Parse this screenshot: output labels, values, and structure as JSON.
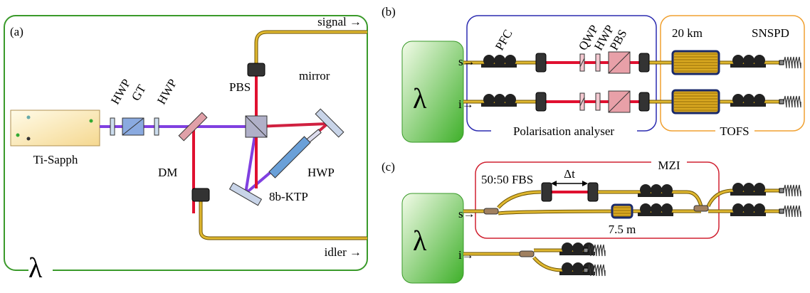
{
  "panel_a": {
    "label": "(a)",
    "source": "Ti-Sapph",
    "symbol": "λ",
    "components": {
      "hwp_in": "HWP",
      "gt": "GT",
      "hwp_out": "HWP",
      "pbs": "PBS",
      "mirror": "mirror",
      "dm": "DM",
      "hwp_loop": "HWP",
      "crystal": "8b-KTP"
    },
    "outputs": {
      "signal": "signal →",
      "idler": "idler →"
    }
  },
  "panel_b": {
    "label": "(b)",
    "symbol": "λ",
    "inputs": {
      "s": "s→",
      "i": "i→"
    },
    "components": {
      "pfc": "PFC",
      "qwp": "QWP",
      "hwp": "HWP",
      "pbs": "PBS",
      "spool": "20 km",
      "detector": "SNSPD"
    },
    "groups": {
      "analyser": "Polarisation analyser",
      "filter": "TOFS"
    }
  },
  "panel_c": {
    "label": "(c)",
    "symbol": "λ",
    "inputs": {
      "s": "s→",
      "i": "i→"
    },
    "components": {
      "fbs": "50:50 FBS",
      "delay": "Δt",
      "spool": "7.5 m"
    },
    "groups": {
      "interferometer": "MZI"
    }
  }
}
